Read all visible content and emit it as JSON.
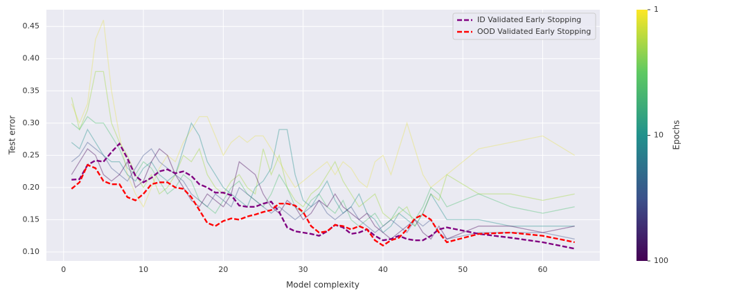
{
  "chart_data": {
    "type": "line",
    "xlabel": "Model complexity",
    "ylabel": "Test error",
    "x": [
      1,
      2,
      3,
      4,
      5,
      6,
      7,
      8,
      9,
      10,
      11,
      12,
      13,
      14,
      15,
      16,
      17,
      18,
      19,
      20,
      21,
      22,
      23,
      24,
      25,
      26,
      27,
      28,
      29,
      30,
      31,
      32,
      33,
      34,
      35,
      36,
      37,
      38,
      39,
      40,
      41,
      42,
      43,
      44,
      45,
      46,
      47,
      48,
      52,
      56,
      60,
      64
    ],
    "xlim": [
      -2.15,
      67.15
    ],
    "xticks": [
      0,
      10,
      20,
      30,
      40,
      50,
      60
    ],
    "ylim": [
      0.086,
      0.476
    ],
    "yticks": [
      {
        "value": 0.1,
        "label": "0.10"
      },
      0.15,
      {
        "value": 0.2,
        "label": "0.20"
      },
      0.25,
      {
        "value": 0.3,
        "label": "0.30"
      },
      0.35,
      {
        "value": 0.4,
        "label": "0.40"
      },
      0.45
    ],
    "grid": true,
    "legend": "upper right",
    "background_series": [
      {
        "color": "#e8e35a",
        "values": [
          0.33,
          0.3,
          0.33,
          0.43,
          0.46,
          0.35,
          0.28,
          0.22,
          0.19,
          0.17,
          0.2,
          0.23,
          0.25,
          0.24,
          0.27,
          0.29,
          0.31,
          0.31,
          0.28,
          0.25,
          0.27,
          0.28,
          0.27,
          0.28,
          0.28,
          0.26,
          0.24,
          0.22,
          0.2,
          0.21,
          0.22,
          0.23,
          0.24,
          0.22,
          0.24,
          0.23,
          0.21,
          0.2,
          0.24,
          0.25,
          0.22,
          0.26,
          0.3,
          0.26,
          0.22,
          0.2,
          0.21,
          0.22,
          0.26,
          0.27,
          0.28,
          0.25
        ]
      },
      {
        "color": "#a0da39",
        "values": [
          0.34,
          0.29,
          0.32,
          0.38,
          0.38,
          0.3,
          0.27,
          0.25,
          0.22,
          0.2,
          0.22,
          0.19,
          0.2,
          0.22,
          0.25,
          0.24,
          0.26,
          0.22,
          0.2,
          0.19,
          0.21,
          0.22,
          0.2,
          0.19,
          0.26,
          0.22,
          0.25,
          0.2,
          0.18,
          0.17,
          0.19,
          0.2,
          0.22,
          0.24,
          0.21,
          0.19,
          0.17,
          0.18,
          0.19,
          0.16,
          0.15,
          0.16,
          0.17,
          0.14,
          0.16,
          0.19,
          0.18,
          0.22,
          0.19,
          0.19,
          0.18,
          0.19
        ]
      },
      {
        "color": "#4ac16d",
        "values": [
          0.3,
          0.29,
          0.31,
          0.3,
          0.3,
          0.28,
          0.26,
          0.23,
          0.22,
          0.24,
          0.23,
          0.21,
          0.19,
          0.2,
          0.22,
          0.21,
          0.18,
          0.17,
          0.16,
          0.18,
          0.2,
          0.21,
          0.19,
          0.18,
          0.17,
          0.19,
          0.22,
          0.2,
          0.17,
          0.16,
          0.18,
          0.19,
          0.17,
          0.16,
          0.18,
          0.15,
          0.14,
          0.15,
          0.16,
          0.14,
          0.15,
          0.17,
          0.16,
          0.15,
          0.17,
          0.2,
          0.19,
          0.17,
          0.19,
          0.17,
          0.16,
          0.17
        ]
      },
      {
        "color": "#21918c",
        "values": [
          0.27,
          0.26,
          0.29,
          0.27,
          0.25,
          0.24,
          0.24,
          0.22,
          0.21,
          0.23,
          0.24,
          0.22,
          0.21,
          0.22,
          0.26,
          0.3,
          0.28,
          0.24,
          0.22,
          0.2,
          0.19,
          0.18,
          0.17,
          0.2,
          0.21,
          0.23,
          0.29,
          0.29,
          0.22,
          0.18,
          0.17,
          0.19,
          0.21,
          0.18,
          0.16,
          0.17,
          0.19,
          0.16,
          0.15,
          0.13,
          0.14,
          0.16,
          0.15,
          0.14,
          0.16,
          0.19,
          0.17,
          0.15,
          0.15,
          0.14,
          0.14,
          0.14
        ]
      },
      {
        "color": "#3b528b",
        "values": [
          0.24,
          0.25,
          0.27,
          0.26,
          0.25,
          0.23,
          0.22,
          0.21,
          0.23,
          0.25,
          0.26,
          0.24,
          0.23,
          0.22,
          0.21,
          0.19,
          0.18,
          0.17,
          0.19,
          0.18,
          0.17,
          0.2,
          0.19,
          0.18,
          0.17,
          0.16,
          0.17,
          0.16,
          0.15,
          0.16,
          0.17,
          0.18,
          0.16,
          0.15,
          0.16,
          0.17,
          0.15,
          0.14,
          0.13,
          0.14,
          0.15,
          0.14,
          0.13,
          0.15,
          0.14,
          0.15,
          0.13,
          0.12,
          0.13,
          0.13,
          0.13,
          0.12
        ]
      },
      {
        "color": "#440154",
        "values": [
          0.22,
          0.24,
          0.26,
          0.25,
          0.22,
          0.21,
          0.22,
          0.24,
          0.2,
          0.21,
          0.24,
          0.26,
          0.25,
          0.22,
          0.2,
          0.18,
          0.17,
          0.19,
          0.18,
          0.17,
          0.19,
          0.24,
          0.23,
          0.22,
          0.19,
          0.17,
          0.16,
          0.18,
          0.17,
          0.15,
          0.16,
          0.18,
          0.17,
          0.19,
          0.17,
          0.16,
          0.15,
          0.16,
          0.14,
          0.13,
          0.12,
          0.13,
          0.14,
          0.15,
          0.13,
          0.12,
          0.14,
          0.12,
          0.14,
          0.14,
          0.13,
          0.14
        ]
      }
    ],
    "series": [
      {
        "name": "ID Validated Early Stopping",
        "color": "#800080",
        "values": [
          0.212,
          0.213,
          0.235,
          0.242,
          0.24,
          0.255,
          0.268,
          0.245,
          0.218,
          0.208,
          0.215,
          0.225,
          0.228,
          0.222,
          0.225,
          0.218,
          0.205,
          0.2,
          0.192,
          0.192,
          0.188,
          0.172,
          0.17,
          0.17,
          0.175,
          0.178,
          0.162,
          0.138,
          0.132,
          0.13,
          0.128,
          0.125,
          0.132,
          0.142,
          0.138,
          0.128,
          0.13,
          0.135,
          0.125,
          0.118,
          0.12,
          0.125,
          0.12,
          0.118,
          0.118,
          0.125,
          0.135,
          0.138,
          0.128,
          0.122,
          0.115,
          0.105
        ]
      },
      {
        "name": "OOD Validated Early Stopping",
        "color": "#ff0000",
        "values": [
          0.198,
          0.208,
          0.235,
          0.23,
          0.21,
          0.205,
          0.205,
          0.185,
          0.18,
          0.19,
          0.205,
          0.208,
          0.208,
          0.2,
          0.198,
          0.185,
          0.165,
          0.145,
          0.14,
          0.148,
          0.152,
          0.15,
          0.155,
          0.158,
          0.162,
          0.165,
          0.175,
          0.175,
          0.172,
          0.162,
          0.14,
          0.13,
          0.132,
          0.142,
          0.14,
          0.135,
          0.14,
          0.135,
          0.118,
          0.11,
          0.118,
          0.122,
          0.135,
          0.152,
          0.158,
          0.15,
          0.13,
          0.115,
          0.128,
          0.13,
          0.125,
          0.115
        ]
      }
    ],
    "colorbar": {
      "label": "Epochs",
      "log": true,
      "lim": [
        1,
        100
      ],
      "ticks": [
        1,
        10,
        100
      ],
      "colors": [
        "#fde725",
        "#5ec962",
        "#21918c",
        "#3b528b",
        "#440154"
      ]
    }
  }
}
